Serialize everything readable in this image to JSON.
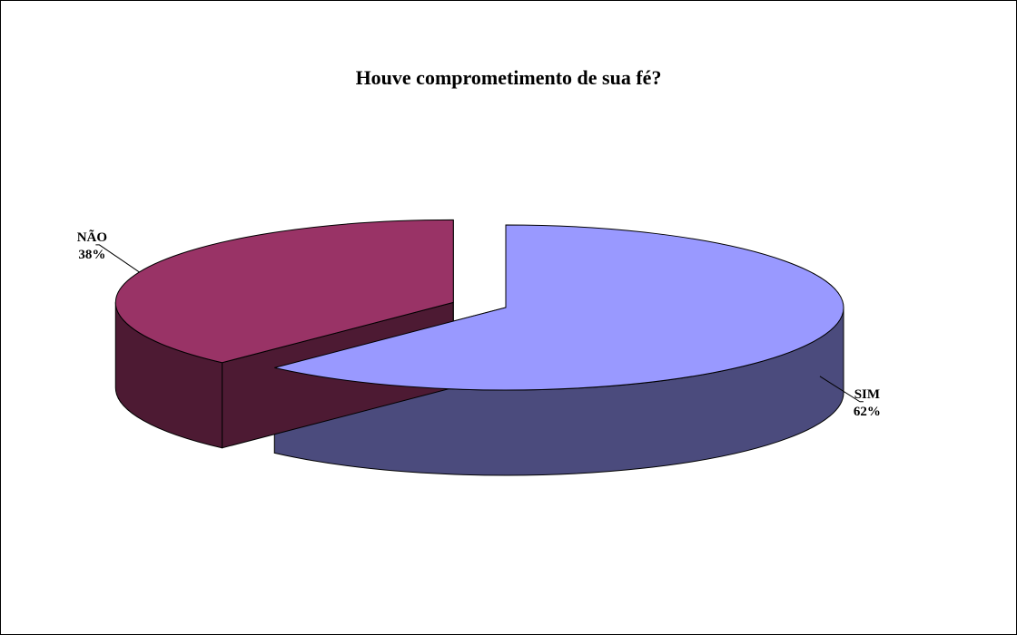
{
  "chart_data": {
    "type": "pie",
    "title": "Houve comprometimento de sua fé?",
    "slices": [
      {
        "label": "SIM",
        "value": 62,
        "percent_label": "62%",
        "color": "#9999FF",
        "side_color": "#4B4B7D",
        "exploded": false
      },
      {
        "label": "NÃO",
        "value": 38,
        "percent_label": "38%",
        "color": "#993366",
        "side_color": "#4D1A33",
        "exploded": true
      }
    ],
    "three_d": true,
    "legend": "none",
    "data_labels": "category-and-percent"
  }
}
